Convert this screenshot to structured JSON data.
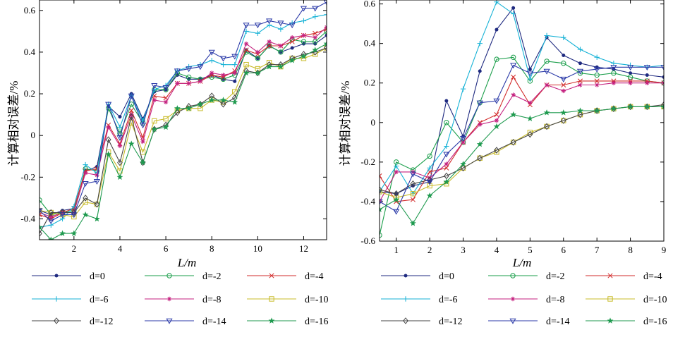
{
  "chart_data": [
    {
      "type": "line",
      "title": "",
      "xlabel": "L/m",
      "ylabel": "计算相对误差/%",
      "xlim": [
        0.5,
        13
      ],
      "ylim": [
        -0.5,
        0.65
      ],
      "xticks": [
        2,
        4,
        6,
        8,
        10,
        12
      ],
      "xtick_labels": [
        "2",
        "4",
        "6",
        "8",
        "10",
        "12"
      ],
      "yticks": [
        -0.4,
        -0.2,
        0,
        0.2,
        0.4,
        0.6
      ],
      "ytick_labels": [
        "-0.4",
        "-0.2",
        "0",
        "0.2",
        "0.4",
        "0.6"
      ],
      "grid": false,
      "x": [
        0.5,
        1,
        1.5,
        2,
        2.5,
        3,
        3.5,
        4,
        4.5,
        5,
        5.5,
        6,
        6.5,
        7,
        7.5,
        8,
        8.5,
        9,
        9.5,
        10,
        10.5,
        11,
        11.5,
        12,
        12.5,
        13
      ],
      "series": [
        {
          "name": "d=0",
          "values": [
            -0.36,
            -0.38,
            -0.36,
            -0.35,
            -0.17,
            -0.15,
            0.14,
            0.09,
            0.2,
            0.08,
            0.21,
            0.22,
            0.29,
            0.27,
            0.27,
            0.29,
            0.27,
            0.26,
            0.41,
            0.37,
            0.43,
            0.4,
            0.42,
            0.44,
            0.44,
            0.48
          ]
        },
        {
          "name": "d=-2",
          "values": [
            -0.31,
            -0.38,
            -0.37,
            -0.36,
            -0.16,
            -0.17,
            0.13,
            0.01,
            0.15,
            0.06,
            0.22,
            0.22,
            0.3,
            0.28,
            0.27,
            0.28,
            0.27,
            0.29,
            0.4,
            0.37,
            0.43,
            0.4,
            0.46,
            0.45,
            0.45,
            0.5
          ]
        },
        {
          "name": "d=-4",
          "values": [
            -0.38,
            -0.4,
            -0.37,
            -0.35,
            -0.17,
            -0.16,
            0.05,
            -0.04,
            0.12,
            -0.01,
            0.19,
            0.18,
            0.25,
            0.25,
            0.26,
            0.29,
            0.28,
            0.31,
            0.41,
            0.39,
            0.43,
            0.43,
            0.45,
            0.48,
            0.49,
            0.51
          ]
        },
        {
          "name": "d=-6",
          "values": [
            -0.44,
            -0.43,
            -0.4,
            -0.34,
            -0.14,
            -0.18,
            0.15,
            0.04,
            0.19,
            0.07,
            0.22,
            0.24,
            0.31,
            0.33,
            0.34,
            0.36,
            0.34,
            0.34,
            0.5,
            0.49,
            0.53,
            0.51,
            0.54,
            0.55,
            0.57,
            0.58
          ]
        },
        {
          "name": "d=-8",
          "values": [
            -0.37,
            -0.39,
            -0.37,
            -0.37,
            -0.18,
            -0.19,
            0.04,
            -0.05,
            0.1,
            -0.03,
            0.17,
            0.16,
            0.25,
            0.25,
            0.26,
            0.3,
            0.29,
            0.3,
            0.44,
            0.4,
            0.45,
            0.43,
            0.47,
            0.48,
            0.47,
            0.52
          ]
        },
        {
          "name": "d=-10",
          "values": [
            -0.36,
            -0.37,
            -0.38,
            -0.39,
            -0.32,
            -0.33,
            -0.08,
            -0.17,
            0.06,
            -0.08,
            0.07,
            0.08,
            0.12,
            0.13,
            0.13,
            0.17,
            0.16,
            0.21,
            0.34,
            0.32,
            0.35,
            0.33,
            0.37,
            0.37,
            0.39,
            0.42
          ]
        },
        {
          "name": "d=-12",
          "values": [
            -0.47,
            -0.37,
            -0.37,
            -0.37,
            -0.3,
            -0.33,
            -0.02,
            -0.13,
            0.09,
            -0.13,
            0.03,
            0.05,
            0.11,
            0.14,
            0.15,
            0.19,
            0.15,
            0.18,
            0.31,
            0.3,
            0.34,
            0.34,
            0.37,
            0.39,
            0.4,
            0.42
          ]
        },
        {
          "name": "d=-14",
          "values": [
            -0.36,
            -0.41,
            -0.38,
            -0.38,
            -0.23,
            -0.22,
            0.15,
            -0.01,
            0.19,
            0.05,
            0.24,
            0.23,
            0.31,
            0.32,
            0.33,
            0.4,
            0.37,
            0.38,
            0.53,
            0.53,
            0.55,
            0.54,
            0.53,
            0.61,
            0.61,
            0.64
          ]
        },
        {
          "name": "d=-16",
          "values": [
            -0.44,
            -0.5,
            -0.47,
            -0.47,
            -0.38,
            -0.4,
            -0.09,
            -0.2,
            -0.04,
            -0.13,
            0.03,
            0.04,
            0.13,
            0.13,
            0.15,
            0.17,
            0.17,
            0.16,
            0.3,
            0.3,
            0.33,
            0.33,
            0.36,
            0.38,
            0.41,
            0.44
          ]
        }
      ]
    },
    {
      "type": "line",
      "title": "",
      "xlabel": "L/m",
      "ylabel": "计算相对误差/%",
      "xlim": [
        0.5,
        9
      ],
      "ylim": [
        -0.6,
        0.62
      ],
      "xticks": [
        1,
        2,
        3,
        4,
        5,
        6,
        7,
        8,
        9
      ],
      "xtick_labels": [
        "1",
        "2",
        "3",
        "4",
        "5",
        "6",
        "7",
        "8",
        "9"
      ],
      "yticks": [
        -0.6,
        -0.4,
        -0.2,
        0,
        0.2,
        0.4,
        0.6
      ],
      "ytick_labels": [
        "-0.6",
        "-0.4",
        "-0.2",
        "0",
        "0.2",
        "0.4",
        "0.6"
      ],
      "grid": false,
      "x": [
        0.5,
        1,
        1.5,
        2,
        2.5,
        3,
        3.5,
        4,
        4.5,
        5,
        5.5,
        6,
        6.5,
        7,
        7.5,
        8,
        8.5,
        9
      ],
      "series": [
        {
          "name": "d=0",
          "values": [
            -0.35,
            -0.36,
            -0.32,
            -0.3,
            0.11,
            -0.07,
            0.26,
            0.47,
            0.58,
            0.27,
            0.43,
            0.34,
            0.3,
            0.28,
            0.27,
            0.25,
            0.24,
            0.23
          ]
        },
        {
          "name": "d=-2",
          "values": [
            -0.57,
            -0.2,
            -0.24,
            -0.17,
            0.0,
            -0.1,
            0.1,
            0.32,
            0.33,
            0.21,
            0.31,
            0.3,
            0.25,
            0.24,
            0.25,
            0.23,
            0.21,
            0.2
          ]
        },
        {
          "name": "d=-4",
          "values": [
            -0.27,
            -0.4,
            -0.39,
            -0.25,
            -0.23,
            -0.1,
            0.0,
            0.04,
            0.23,
            0.09,
            0.19,
            0.19,
            0.21,
            0.21,
            0.21,
            0.21,
            0.21,
            0.2
          ]
        },
        {
          "name": "d=-6",
          "values": [
            -0.35,
            -0.22,
            -0.36,
            -0.23,
            -0.12,
            0.17,
            0.4,
            0.61,
            0.55,
            0.22,
            0.44,
            0.43,
            0.37,
            0.33,
            0.3,
            0.29,
            0.28,
            0.29
          ]
        },
        {
          "name": "d=-8",
          "values": [
            -0.4,
            -0.25,
            -0.25,
            -0.28,
            -0.21,
            -0.1,
            -0.01,
            0.01,
            0.14,
            0.1,
            0.19,
            0.16,
            0.19,
            0.19,
            0.2,
            0.2,
            0.2,
            0.2
          ]
        },
        {
          "name": "d=-10",
          "values": [
            -0.35,
            -0.38,
            -0.36,
            -0.32,
            -0.31,
            -0.23,
            -0.18,
            -0.15,
            -0.1,
            -0.05,
            -0.02,
            0.01,
            0.04,
            0.06,
            0.07,
            0.08,
            0.08,
            0.08
          ]
        },
        {
          "name": "d=-12",
          "values": [
            -0.34,
            -0.36,
            -0.31,
            -0.29,
            -0.27,
            -0.23,
            -0.18,
            -0.14,
            -0.1,
            -0.06,
            -0.02,
            0.01,
            0.04,
            0.06,
            0.07,
            0.08,
            0.08,
            0.09
          ]
        },
        {
          "name": "d=-14",
          "values": [
            -0.4,
            -0.45,
            -0.26,
            -0.3,
            -0.16,
            -0.08,
            0.1,
            0.11,
            0.29,
            0.25,
            0.26,
            0.22,
            0.26,
            0.27,
            0.28,
            0.28,
            0.28,
            0.28
          ]
        },
        {
          "name": "d=-16",
          "values": [
            -0.44,
            -0.39,
            -0.51,
            -0.37,
            -0.3,
            -0.21,
            -0.11,
            -0.02,
            0.04,
            0.02,
            0.05,
            0.05,
            0.06,
            0.06,
            0.07,
            0.08,
            0.08,
            0.08
          ]
        }
      ]
    }
  ],
  "styles": [
    {
      "color": "#1f2a80",
      "marker": "dot"
    },
    {
      "color": "#1a9e4a",
      "marker": "circle"
    },
    {
      "color": "#d22b2b",
      "marker": "x"
    },
    {
      "color": "#16b2d6",
      "marker": "plus"
    },
    {
      "color": "#c4207f",
      "marker": "star"
    },
    {
      "color": "#c8bb29",
      "marker": "square"
    },
    {
      "color": "#444444",
      "marker": "diamond"
    },
    {
      "color": "#2b3aa8",
      "marker": "triangle-down"
    },
    {
      "color": "#1f9a4f",
      "marker": "pentagram"
    }
  ]
}
